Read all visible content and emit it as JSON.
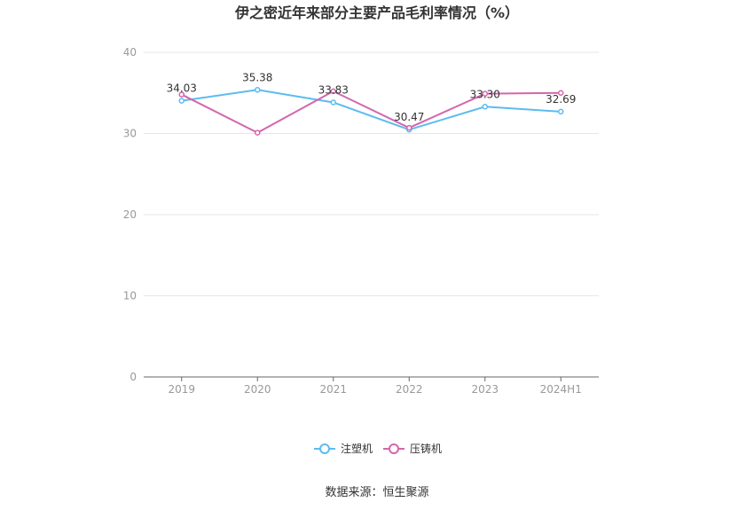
{
  "chart_data": {
    "type": "line",
    "title": "伊之密近年来部分主要产品毛利率情况（%）",
    "categories": [
      "2019",
      "2020",
      "2021",
      "2022",
      "2023",
      "2024H1"
    ],
    "ylim": [
      0,
      40
    ],
    "yticks": [
      "0",
      "10",
      "20",
      "30",
      "40"
    ],
    "grid": true,
    "legend_position": "bottom",
    "series": [
      {
        "name": "注塑机",
        "color": "#5bbcf0",
        "values": [
          34.03,
          35.38,
          33.83,
          30.47,
          33.3,
          32.69
        ],
        "labels": [
          "34.03",
          "35.38",
          "33.83",
          "30.47",
          "33.30",
          "32.69"
        ]
      },
      {
        "name": "压铸机",
        "color": "#d466ac",
        "values": [
          34.8,
          30.1,
          35.2,
          30.7,
          34.9,
          35.0
        ]
      }
    ]
  },
  "source": "数据来源：恒生聚源"
}
